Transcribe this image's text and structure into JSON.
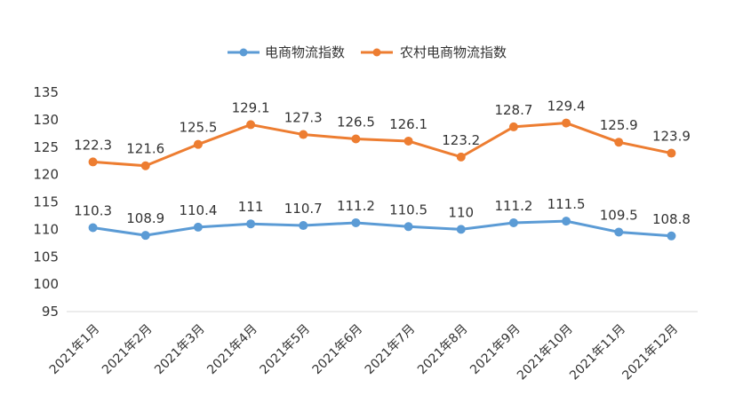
{
  "chart_data": {
    "type": "line",
    "title": "",
    "xlabel": "",
    "ylabel": "",
    "categories": [
      "2021年1月",
      "2021年2月",
      "2021年3月",
      "2021年4月",
      "2021年5月",
      "2021年6月",
      "2021年7月",
      "2021年8月",
      "2021年9月",
      "2021年10月",
      "2021年11月",
      "2021年12月"
    ],
    "ylim": [
      95,
      135
    ],
    "yticks": [
      95,
      100,
      105,
      110,
      115,
      120,
      125,
      130,
      135
    ],
    "grid": false,
    "legend_position": "top-center",
    "series": [
      {
        "name": "电商物流指数",
        "color": "#5B9BD5",
        "values": [
          110.3,
          108.9,
          110.4,
          111,
          110.7,
          111.2,
          110.5,
          110,
          111.2,
          111.5,
          109.5,
          108.8
        ],
        "labels": [
          "110.3",
          "108.9",
          "110.4",
          "111",
          "110.7",
          "111.2",
          "110.5",
          "110",
          "111.2",
          "111.5",
          "109.5",
          "108.8"
        ]
      },
      {
        "name": "农村电商物流指数",
        "color": "#ED7D31",
        "values": [
          122.3,
          121.6,
          125.5,
          129.1,
          127.3,
          126.5,
          126.1,
          123.2,
          128.7,
          129.4,
          125.9,
          123.9
        ],
        "labels": [
          "122.3",
          "121.6",
          "125.5",
          "129.1",
          "127.3",
          "126.5",
          "126.1",
          "123.2",
          "128.7",
          "129.4",
          "125.9",
          "123.9"
        ]
      }
    ]
  }
}
